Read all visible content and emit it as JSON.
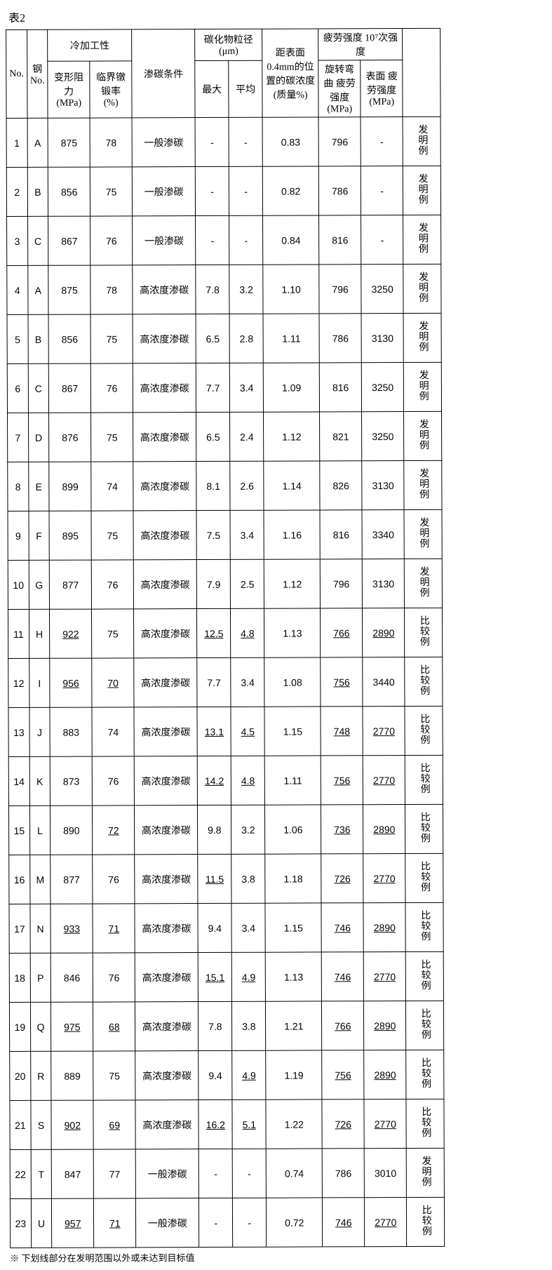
{
  "caption": "表2",
  "footnote": "※ 下划线部分在发明范围以外或未达到目标值",
  "colors": {
    "border": "#000000",
    "background": "#ffffff",
    "text": "#000000"
  },
  "font_sizes": {
    "body": 14,
    "caption": 16,
    "note": 13
  },
  "headers": {
    "no": "No.",
    "steel": "钢 No.",
    "cold_group": "冷加工性",
    "deform": "变形阻力 (MPa)",
    "forge": "临界镦锻率 (%)",
    "carb_cond": "渗碳条件",
    "carbide_group": "碳化物粒径(μm)",
    "max": "最大",
    "avg": "平均",
    "c_conc": "距表面 0.4mm的位 置的碳浓度 (质量%)",
    "fatigue_group": "疲劳强度 10⁷次强度",
    "rot": "旋转弯曲 疲劳强度 (MPa)",
    "surf": "表面 疲劳强度 (MPa)",
    "remark": ""
  },
  "carb_general": "一般渗碳",
  "carb_high": "高浓度渗碳",
  "remark_inv": "发明例",
  "remark_cmp": "比较例",
  "rows": [
    {
      "no": "1",
      "steel": "A",
      "def": "875",
      "fr": "78",
      "carb": "g",
      "max": "-",
      "avg": "-",
      "cc": "0.83",
      "rot": "796",
      "surf": "-",
      "rem": "inv"
    },
    {
      "no": "2",
      "steel": "B",
      "def": "856",
      "fr": "75",
      "carb": "g",
      "max": "-",
      "avg": "-",
      "cc": "0.82",
      "rot": "786",
      "surf": "-",
      "rem": "inv"
    },
    {
      "no": "3",
      "steel": "C",
      "def": "867",
      "fr": "76",
      "carb": "g",
      "max": "-",
      "avg": "-",
      "cc": "0.84",
      "rot": "816",
      "surf": "-",
      "rem": "inv"
    },
    {
      "no": "4",
      "steel": "A",
      "def": "875",
      "fr": "78",
      "carb": "h",
      "max": "7.8",
      "avg": "3.2",
      "cc": "1.10",
      "rot": "796",
      "surf": "3250",
      "rem": "inv"
    },
    {
      "no": "5",
      "steel": "B",
      "def": "856",
      "fr": "75",
      "carb": "h",
      "max": "6.5",
      "avg": "2.8",
      "cc": "1.11",
      "rot": "786",
      "surf": "3130",
      "rem": "inv"
    },
    {
      "no": "6",
      "steel": "C",
      "def": "867",
      "fr": "76",
      "carb": "h",
      "max": "7.7",
      "avg": "3.4",
      "cc": "1.09",
      "rot": "816",
      "surf": "3250",
      "rem": "inv"
    },
    {
      "no": "7",
      "steel": "D",
      "def": "876",
      "fr": "75",
      "carb": "h",
      "max": "6.5",
      "avg": "2.4",
      "cc": "1.12",
      "rot": "821",
      "surf": "3250",
      "rem": "inv"
    },
    {
      "no": "8",
      "steel": "E",
      "def": "899",
      "fr": "74",
      "carb": "h",
      "max": "8.1",
      "avg": "2.6",
      "cc": "1.14",
      "rot": "826",
      "surf": "3130",
      "rem": "inv"
    },
    {
      "no": "9",
      "steel": "F",
      "def": "895",
      "fr": "75",
      "carb": "h",
      "max": "7.5",
      "avg": "3.4",
      "cc": "1.16",
      "rot": "816",
      "surf": "3340",
      "rem": "inv"
    },
    {
      "no": "10",
      "steel": "G",
      "def": "877",
      "fr": "76",
      "carb": "h",
      "max": "7.9",
      "avg": "2.5",
      "cc": "1.12",
      "rot": "796",
      "surf": "3130",
      "rem": "inv"
    },
    {
      "no": "11",
      "steel": "H",
      "def": "922",
      "def_u": true,
      "fr": "75",
      "carb": "h",
      "max": "12.5",
      "max_u": true,
      "avg": "4.8",
      "avg_u": true,
      "cc": "1.13",
      "rot": "766",
      "rot_u": true,
      "surf": "2890",
      "surf_u": true,
      "rem": "cmp"
    },
    {
      "no": "12",
      "steel": "I",
      "def": "956",
      "def_u": true,
      "fr": "70",
      "fr_u": true,
      "carb": "h",
      "max": "7.7",
      "avg": "3.4",
      "cc": "1.08",
      "rot": "756",
      "rot_u": true,
      "surf": "3440",
      "rem": "cmp"
    },
    {
      "no": "13",
      "steel": "J",
      "def": "883",
      "fr": "74",
      "carb": "h",
      "max": "13.1",
      "max_u": true,
      "avg": "4.5",
      "avg_u": true,
      "cc": "1.15",
      "rot": "748",
      "rot_u": true,
      "surf": "2770",
      "surf_u": true,
      "rem": "cmp"
    },
    {
      "no": "14",
      "steel": "K",
      "def": "873",
      "fr": "76",
      "carb": "h",
      "max": "14.2",
      "max_u": true,
      "avg": "4.8",
      "avg_u": true,
      "cc": "1.11",
      "rot": "756",
      "rot_u": true,
      "surf": "2770",
      "surf_u": true,
      "rem": "cmp"
    },
    {
      "no": "15",
      "steel": "L",
      "def": "890",
      "fr": "72",
      "fr_u": true,
      "carb": "h",
      "max": "9.8",
      "avg": "3.2",
      "cc": "1.06",
      "rot": "736",
      "rot_u": true,
      "surf": "2890",
      "surf_u": true,
      "rem": "cmp"
    },
    {
      "no": "16",
      "steel": "M",
      "def": "877",
      "fr": "76",
      "carb": "h",
      "max": "11.5",
      "max_u": true,
      "avg": "3.8",
      "cc": "1.18",
      "rot": "726",
      "rot_u": true,
      "surf": "2770",
      "surf_u": true,
      "rem": "cmp"
    },
    {
      "no": "17",
      "steel": "N",
      "def": "933",
      "def_u": true,
      "fr": "71",
      "fr_u": true,
      "carb": "h",
      "max": "9.4",
      "avg": "3.4",
      "cc": "1.15",
      "rot": "746",
      "rot_u": true,
      "surf": "2890",
      "surf_u": true,
      "rem": "cmp"
    },
    {
      "no": "18",
      "steel": "P",
      "def": "846",
      "fr": "76",
      "carb": "h",
      "max": "15.1",
      "max_u": true,
      "avg": "4.9",
      "avg_u": true,
      "cc": "1.13",
      "rot": "746",
      "rot_u": true,
      "surf": "2770",
      "surf_u": true,
      "rem": "cmp"
    },
    {
      "no": "19",
      "steel": "Q",
      "def": "975",
      "def_u": true,
      "fr": "68",
      "fr_u": true,
      "carb": "h",
      "max": "7.8",
      "avg": "3.8",
      "cc": "1.21",
      "rot": "766",
      "rot_u": true,
      "surf": "2890",
      "surf_u": true,
      "rem": "cmp"
    },
    {
      "no": "20",
      "steel": "R",
      "def": "889",
      "fr": "75",
      "carb": "h",
      "max": "9.4",
      "avg": "4.9",
      "avg_u": true,
      "cc": "1.19",
      "rot": "756",
      "rot_u": true,
      "surf": "2890",
      "surf_u": true,
      "rem": "cmp"
    },
    {
      "no": "21",
      "steel": "S",
      "def": "902",
      "def_u": true,
      "fr": "69",
      "fr_u": true,
      "carb": "h",
      "max": "16.2",
      "max_u": true,
      "avg": "5.1",
      "avg_u": true,
      "cc": "1.22",
      "rot": "726",
      "rot_u": true,
      "surf": "2770",
      "surf_u": true,
      "rem": "cmp"
    },
    {
      "no": "22",
      "steel": "T",
      "def": "847",
      "fr": "77",
      "carb": "g",
      "max": "-",
      "avg": "-",
      "cc": "0.74",
      "rot": "786",
      "surf": "3010",
      "rem": "inv"
    },
    {
      "no": "23",
      "steel": "U",
      "def": "957",
      "def_u": true,
      "fr": "71",
      "fr_u": true,
      "carb": "g",
      "max": "-",
      "avg": "-",
      "cc": "0.72",
      "rot": "746",
      "rot_u": true,
      "surf": "2770",
      "surf_u": true,
      "rem": "cmp"
    }
  ]
}
